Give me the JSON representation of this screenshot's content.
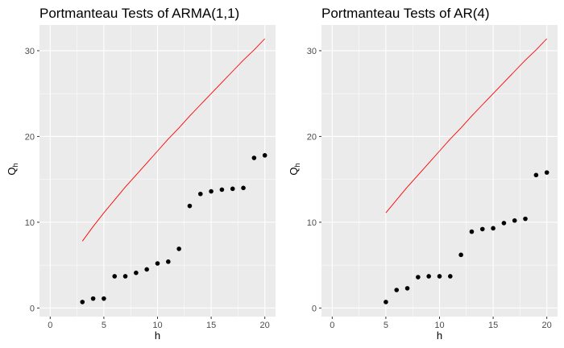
{
  "colors": {
    "panel_background": "#ebebeb",
    "grid_major": "#ffffff",
    "points": "#000000",
    "critical_line": "#ff0000",
    "tick_text": "#4d4d4d"
  },
  "chart_data": [
    {
      "type": "scatter",
      "title": "Portmanteau Tests of ARMA(1,1)",
      "xlabel": "h",
      "ylabel": "Q_h",
      "ylabel_main": "Q",
      "ylabel_sub": "h",
      "xlim": [
        -1,
        21
      ],
      "ylim": [
        -1,
        33
      ],
      "x_ticks": [
        0,
        5,
        10,
        15,
        20
      ],
      "y_ticks": [
        0,
        10,
        20,
        30
      ],
      "grid": true,
      "series": [
        {
          "type": "scatter",
          "x": [
            3,
            4,
            5,
            6,
            7,
            8,
            9,
            10,
            11,
            12,
            13,
            14,
            15,
            16,
            17,
            18,
            19,
            20
          ],
          "y": [
            0.7,
            1.1,
            1.1,
            3.7,
            3.7,
            4.1,
            4.5,
            5.2,
            5.4,
            6.9,
            11.9,
            13.3,
            13.6,
            13.8,
            13.9,
            14.0,
            17.5,
            17.8
          ]
        },
        {
          "type": "line",
          "x": [
            3,
            4,
            5,
            6,
            7,
            8,
            9,
            10,
            11,
            12,
            13,
            14,
            15,
            16,
            17,
            18,
            19,
            20
          ],
          "y": [
            7.8,
            9.5,
            11.1,
            12.6,
            14.1,
            15.5,
            16.9,
            18.3,
            19.7,
            21.0,
            22.4,
            23.7,
            25.0,
            26.3,
            27.6,
            28.9,
            30.1,
            31.4
          ]
        }
      ]
    },
    {
      "type": "scatter",
      "title": "Portmanteau Tests of AR(4)",
      "xlabel": "h",
      "ylabel": "Q_h",
      "ylabel_main": "Q",
      "ylabel_sub": "h",
      "xlim": [
        -1,
        21
      ],
      "ylim": [
        -1,
        33
      ],
      "x_ticks": [
        0,
        5,
        10,
        15,
        20
      ],
      "y_ticks": [
        0,
        10,
        20,
        30
      ],
      "grid": true,
      "series": [
        {
          "type": "scatter",
          "x": [
            5,
            6,
            7,
            8,
            9,
            10,
            11,
            12,
            13,
            14,
            15,
            16,
            17,
            18,
            19,
            20
          ],
          "y": [
            0.7,
            2.1,
            2.3,
            3.6,
            3.7,
            3.7,
            3.7,
            6.2,
            8.9,
            9.2,
            9.3,
            9.9,
            10.2,
            10.4,
            15.5,
            15.8
          ]
        },
        {
          "type": "line",
          "x": [
            5,
            6,
            7,
            8,
            9,
            10,
            11,
            12,
            13,
            14,
            15,
            16,
            17,
            18,
            19,
            20
          ],
          "y": [
            11.1,
            12.6,
            14.1,
            15.5,
            16.9,
            18.3,
            19.7,
            21.0,
            22.4,
            23.7,
            25.0,
            26.3,
            27.6,
            28.9,
            30.1,
            31.4
          ]
        }
      ]
    }
  ]
}
